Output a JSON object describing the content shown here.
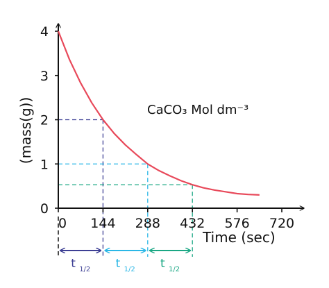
{
  "chart_data": {
    "type": "line",
    "xlabel": "Time (sec)",
    "ylabel": "(mass(g))",
    "annotation": "CaCO₃ Mol dm⁻³",
    "xlim": [
      0,
      720
    ],
    "ylim": [
      0,
      4
    ],
    "x_ticks": [
      "0",
      "144",
      "288",
      "432",
      "576",
      "720"
    ],
    "y_ticks": [
      "0",
      "1",
      "2",
      "3",
      "4"
    ],
    "series": [
      {
        "x": [
          0,
          36,
          72,
          108,
          144,
          180,
          216,
          252,
          288,
          324,
          360,
          396,
          432,
          468,
          504,
          540,
          576,
          612,
          648
        ],
        "y": [
          4.0,
          3.36,
          2.83,
          2.38,
          2.0,
          1.69,
          1.43,
          1.21,
          1.0,
          0.85,
          0.73,
          0.62,
          0.53,
          0.46,
          0.41,
          0.37,
          0.33,
          0.31,
          0.3
        ],
        "color": "#e8495a"
      }
    ],
    "half_life_points": [
      {
        "x": 144,
        "y": 2.0,
        "color": "#3d3f94"
      },
      {
        "x": 288,
        "y": 1.0,
        "color": "#2bb7e6"
      },
      {
        "x": 432,
        "y": 0.53,
        "color": "#1aa784"
      }
    ],
    "half_life_intervals": [
      {
        "from": 0,
        "to": 144,
        "label": "t",
        "sub": "1/2",
        "color": "#3d3f94"
      },
      {
        "from": 144,
        "to": 288,
        "label": "t",
        "sub": "1/2",
        "color": "#2bb7e6"
      },
      {
        "from": 288,
        "to": 432,
        "label": "t",
        "sub": "1/2",
        "color": "#1aa784"
      }
    ]
  }
}
